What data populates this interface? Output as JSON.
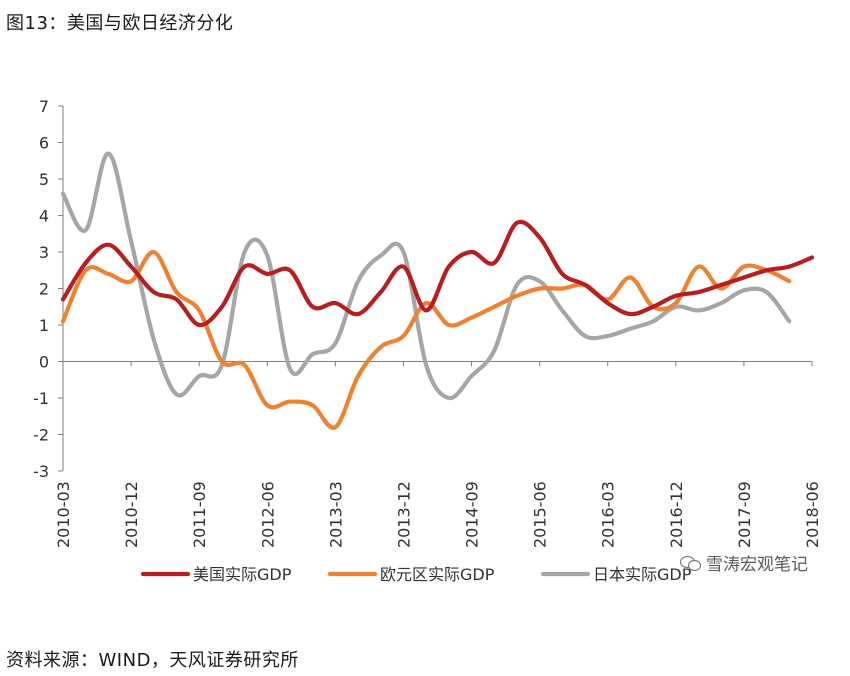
{
  "page": {
    "title": "图13：美国与欧日经济分化",
    "source": "资料来源：WIND，天风证券研究所",
    "watermark": "雪涛宏观笔记",
    "watermark_icon": "wechat-icon"
  },
  "chart_data": {
    "type": "line",
    "title": "",
    "xlabel": "",
    "ylabel": "",
    "ylim": [
      -3,
      7
    ],
    "yticks": [
      "7",
      "6",
      "5",
      "4",
      "3",
      "2",
      "1",
      "0",
      "-1",
      "-2",
      "-3"
    ],
    "xlim": [
      "2010-03",
      "2018-06"
    ],
    "xticks": [
      "2010-03",
      "2010-12",
      "2011-09",
      "2012-06",
      "2013-03",
      "2013-12",
      "2014-09",
      "2015-06",
      "2016-03",
      "2016-12",
      "2017-09",
      "2018-06"
    ],
    "grid": false,
    "legend": "bottom",
    "series": [
      {
        "name": "美国实际GDP",
        "color": "#b81d1f",
        "x": [
          "2010-03",
          "2010-06",
          "2010-09",
          "2010-12",
          "2011-03",
          "2011-06",
          "2011-09",
          "2011-12",
          "2012-03",
          "2012-06",
          "2012-09",
          "2012-12",
          "2013-03",
          "2013-06",
          "2013-09",
          "2013-12",
          "2014-03",
          "2014-06",
          "2014-09",
          "2014-12",
          "2015-03",
          "2015-06",
          "2015-09",
          "2015-12",
          "2016-03",
          "2016-06",
          "2016-09",
          "2016-12",
          "2017-03",
          "2017-06",
          "2017-09",
          "2017-12",
          "2018-03",
          "2018-06"
        ],
        "values": [
          1.7,
          2.7,
          3.2,
          2.6,
          1.9,
          1.7,
          1.0,
          1.5,
          2.6,
          2.4,
          2.5,
          1.5,
          1.6,
          1.3,
          1.9,
          2.6,
          1.4,
          2.6,
          3.0,
          2.7,
          3.8,
          3.4,
          2.4,
          2.1,
          1.6,
          1.3,
          1.5,
          1.8,
          1.9,
          2.1,
          2.3,
          2.5,
          2.6,
          2.85
        ]
      },
      {
        "name": "欧元区实际GDP",
        "color": "#ee8232",
        "x": [
          "2010-03",
          "2010-06",
          "2010-09",
          "2010-12",
          "2011-03",
          "2011-06",
          "2011-09",
          "2011-12",
          "2012-03",
          "2012-06",
          "2012-09",
          "2012-12",
          "2013-03",
          "2013-06",
          "2013-09",
          "2013-12",
          "2014-03",
          "2014-06",
          "2014-09",
          "2014-12",
          "2015-03",
          "2015-06",
          "2015-09",
          "2015-12",
          "2016-03",
          "2016-06",
          "2016-09",
          "2016-12",
          "2017-03",
          "2017-06",
          "2017-09",
          "2017-12",
          "2018-03"
        ],
        "values": [
          1.1,
          2.5,
          2.4,
          2.2,
          3.0,
          1.9,
          1.4,
          0.0,
          -0.1,
          -1.2,
          -1.1,
          -1.2,
          -1.8,
          -0.4,
          0.4,
          0.7,
          1.6,
          1.0,
          1.2,
          1.5,
          1.8,
          2.0,
          2.0,
          2.1,
          1.7,
          2.3,
          1.5,
          1.6,
          2.6,
          2.0,
          2.6,
          2.5,
          2.2
        ]
      },
      {
        "name": "日本实际GDP",
        "color": "#a6a6a6",
        "x": [
          "2010-03",
          "2010-06",
          "2010-09",
          "2010-12",
          "2011-03",
          "2011-06",
          "2011-09",
          "2011-12",
          "2012-03",
          "2012-06",
          "2012-09",
          "2012-12",
          "2013-03",
          "2013-06",
          "2013-09",
          "2013-12",
          "2014-03",
          "2014-06",
          "2014-09",
          "2014-12",
          "2015-03",
          "2015-06",
          "2015-09",
          "2015-12",
          "2016-03",
          "2016-06",
          "2016-09",
          "2016-12",
          "2017-03",
          "2017-06",
          "2017-09",
          "2017-12",
          "2018-03"
        ],
        "values": [
          4.6,
          3.6,
          5.7,
          3.3,
          0.6,
          -0.9,
          -0.4,
          -0.1,
          3.0,
          2.9,
          -0.2,
          0.2,
          0.5,
          2.2,
          2.9,
          3.0,
          -0.1,
          -1.0,
          -0.4,
          0.3,
          2.1,
          2.2,
          1.4,
          0.7,
          0.7,
          0.9,
          1.1,
          1.5,
          1.4,
          1.6,
          1.95,
          1.9,
          1.1
        ]
      }
    ]
  }
}
